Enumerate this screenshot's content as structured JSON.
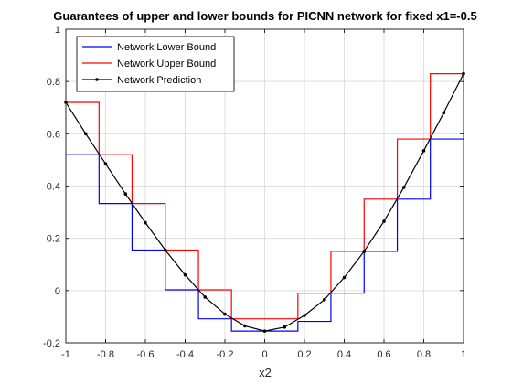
{
  "chart_data": {
    "type": "line",
    "title": "Guarantees of upper and lower bounds for PICNN network for fixed x1=-0.5",
    "xlabel": "x2",
    "ylabel": "",
    "xlim": [
      -1,
      1
    ],
    "ylim": [
      -0.2,
      1
    ],
    "xticks": [
      -1,
      -0.8,
      -0.6,
      -0.4,
      -0.2,
      0,
      0.2,
      0.4,
      0.6,
      0.8,
      1
    ],
    "xtick_labels": [
      "-1",
      "-0.8",
      "-0.6",
      "-0.4",
      "-0.2",
      "0",
      "0.2",
      "0.4",
      "0.6",
      "0.8",
      "1"
    ],
    "yticks": [
      -0.2,
      0,
      0.2,
      0.4,
      0.6,
      0.8,
      1
    ],
    "ytick_labels": [
      "-0.2",
      "0",
      "0.2",
      "0.4",
      "0.6",
      "0.8",
      "1"
    ],
    "grid": true,
    "legend_position": "top-left",
    "series": [
      {
        "name": "Network Lower Bound",
        "color": "#0000ff",
        "style": "step",
        "x": [
          -1,
          -0.833,
          -0.833,
          -0.667,
          -0.667,
          -0.5,
          -0.5,
          -0.333,
          -0.333,
          -0.167,
          -0.167,
          0.167,
          0.167,
          0.333,
          0.333,
          0.5,
          0.5,
          0.667,
          0.667,
          0.833,
          0.833,
          1
        ],
        "y": [
          0.52,
          0.52,
          0.333,
          0.333,
          0.155,
          0.155,
          0.003,
          0.003,
          -0.108,
          -0.108,
          -0.155,
          -0.155,
          -0.118,
          -0.118,
          -0.01,
          -0.01,
          0.15,
          0.15,
          0.35,
          0.35,
          0.58,
          0.58
        ]
      },
      {
        "name": "Network Upper Bound",
        "color": "#ff0000",
        "style": "step",
        "x": [
          -1,
          -0.833,
          -0.833,
          -0.667,
          -0.667,
          -0.5,
          -0.5,
          -0.333,
          -0.333,
          -0.167,
          -0.167,
          0.167,
          0.167,
          0.333,
          0.333,
          0.5,
          0.5,
          0.667,
          0.667,
          0.833,
          0.833,
          1
        ],
        "y": [
          0.72,
          0.72,
          0.52,
          0.52,
          0.333,
          0.333,
          0.155,
          0.155,
          0.003,
          0.003,
          -0.108,
          -0.108,
          -0.01,
          -0.01,
          0.15,
          0.15,
          0.35,
          0.35,
          0.58,
          0.58,
          0.83,
          0.83
        ]
      },
      {
        "name": "Network Prediction",
        "color": "#000000",
        "style": "line-marker",
        "x": [
          -1,
          -0.9,
          -0.8,
          -0.7,
          -0.6,
          -0.5,
          -0.4,
          -0.3,
          -0.2,
          -0.1,
          0,
          0.1,
          0.2,
          0.3,
          0.4,
          0.5,
          0.6,
          0.7,
          0.8,
          0.9,
          1
        ],
        "y": [
          0.72,
          0.6,
          0.485,
          0.37,
          0.26,
          0.155,
          0.06,
          -0.025,
          -0.09,
          -0.135,
          -0.155,
          -0.14,
          -0.095,
          -0.035,
          0.05,
          0.15,
          0.265,
          0.395,
          0.535,
          0.68,
          0.83
        ]
      }
    ]
  }
}
